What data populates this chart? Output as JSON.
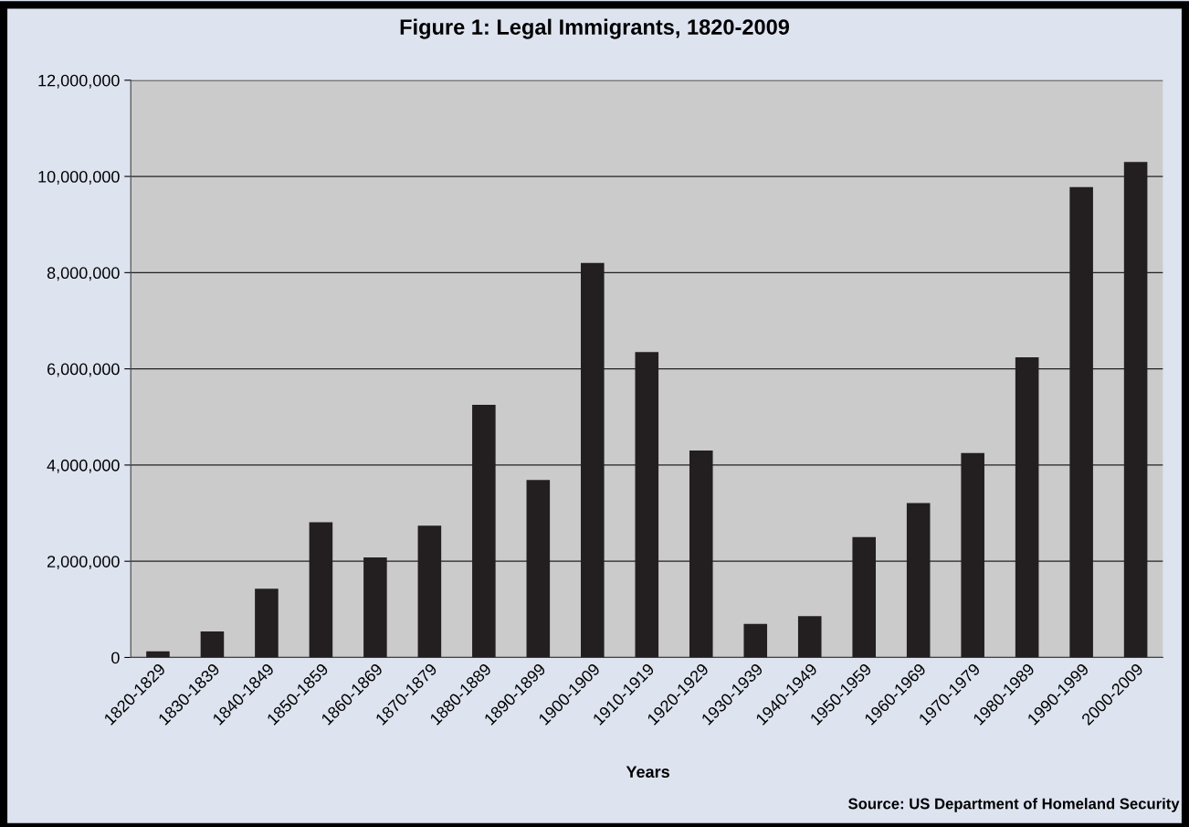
{
  "chart_data": {
    "type": "bar",
    "title": "Figure 1: Legal Immigrants, 1820-2009",
    "xlabel": "Years",
    "categories": [
      "1820-1829",
      "1830-1839",
      "1840-1849",
      "1850-1859",
      "1860-1869",
      "1870-1879",
      "1880-1889",
      "1890-1899",
      "1900-1909",
      "1910-1919",
      "1920-1929",
      "1930-1939",
      "1940-1949",
      "1950-1959",
      "1960-1969",
      "1970-1979",
      "1980-1989",
      "1990-1999",
      "2000-2009"
    ],
    "values": [
      130000,
      540000,
      1430000,
      2810000,
      2080000,
      2740000,
      5250000,
      3690000,
      8200000,
      6350000,
      4300000,
      700000,
      860000,
      2500000,
      3210000,
      4250000,
      6240000,
      9780000,
      10300000
    ],
    "color": "#231f20",
    "ylim": [
      0,
      12000000
    ],
    "yticks": [
      {
        "value": 0,
        "label": "0"
      },
      {
        "value": 2000000,
        "label": "2,000,000"
      },
      {
        "value": 4000000,
        "label": "4,000,000"
      },
      {
        "value": 6000000,
        "label": "6,000,000"
      },
      {
        "value": 8000000,
        "label": "8,000,000"
      },
      {
        "value": 10000000,
        "label": "10,000,000"
      },
      {
        "value": 12000000,
        "label": "12,000,000"
      }
    ],
    "grid": "y",
    "annotations": [
      "Source: US Department of Homeland Security"
    ]
  }
}
